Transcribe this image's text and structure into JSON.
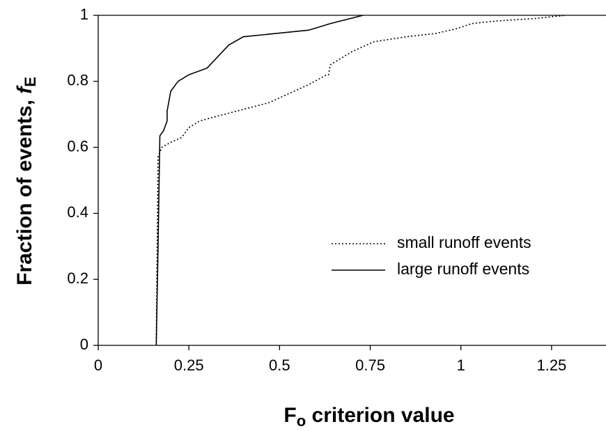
{
  "chart_data": {
    "type": "line",
    "xlabel": {
      "main": "F",
      "subscript": "o",
      "rest": " criterion value"
    },
    "ylabel": {
      "main": "Fraction of events, ",
      "symbol": "f",
      "subscript": "E"
    },
    "xlim": [
      0,
      1.4
    ],
    "ylim": [
      0,
      1
    ],
    "xticks": [
      0,
      0.25,
      0.5,
      0.75,
      1,
      1.25
    ],
    "yticks": [
      0,
      0.2,
      0.4,
      0.6,
      0.8,
      1
    ],
    "series": [
      {
        "name": "small runoff events",
        "color": "#000000",
        "dash": "dotted",
        "x": [
          0.16,
          0.165,
          0.175,
          0.2,
          0.23,
          0.25,
          0.28,
          0.33,
          0.4,
          0.47,
          0.52,
          0.58,
          0.63,
          0.635,
          0.64,
          0.7,
          0.76,
          0.85,
          0.93,
          0.99,
          1.03,
          1.1,
          1.2,
          1.29
        ],
        "values": [
          0,
          0.57,
          0.6,
          0.615,
          0.63,
          0.66,
          0.68,
          0.695,
          0.715,
          0.735,
          0.76,
          0.79,
          0.82,
          0.82,
          0.85,
          0.89,
          0.92,
          0.935,
          0.945,
          0.96,
          0.975,
          0.983,
          0.99,
          1.0
        ]
      },
      {
        "name": "large runoff events",
        "color": "#000000",
        "dash": "solid",
        "x": [
          0.16,
          0.165,
          0.17,
          0.18,
          0.19,
          0.19,
          0.2,
          0.22,
          0.25,
          0.3,
          0.36,
          0.4,
          0.58,
          0.64,
          0.73
        ],
        "values": [
          0,
          0.3,
          0.635,
          0.65,
          0.68,
          0.71,
          0.77,
          0.8,
          0.82,
          0.84,
          0.91,
          0.935,
          0.955,
          0.975,
          1.0
        ]
      }
    ]
  }
}
